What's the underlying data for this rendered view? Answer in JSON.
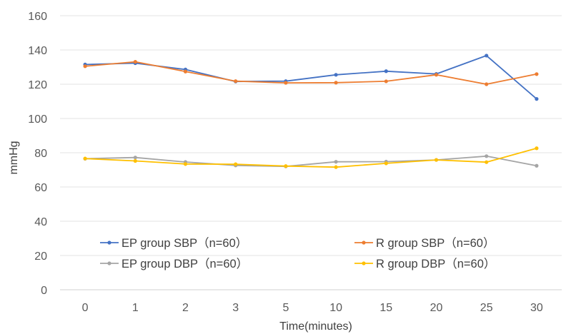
{
  "chart_data": {
    "type": "line",
    "categories": [
      "0",
      "1",
      "2",
      "3",
      "5",
      "10",
      "15",
      "20",
      "25",
      "30"
    ],
    "xlabel": "Time(minutes)",
    "ylabel": "mmHg",
    "ylim": [
      0,
      160
    ],
    "yticks": [
      0,
      20,
      40,
      60,
      80,
      100,
      120,
      140,
      160
    ],
    "grid": "horizontal",
    "legend_position": "bottom-inside",
    "series": [
      {
        "name": "EP group SBP（n=60）",
        "color": "#4472C4",
        "values": [
          131.5,
          132.3,
          128.6,
          121.6,
          121.8,
          125.5,
          127.6,
          126.0,
          136.7,
          111.4
        ]
      },
      {
        "name": "R group SBP（n=60）",
        "color": "#ED7D31",
        "values": [
          130.5,
          133.1,
          127.4,
          121.8,
          120.8,
          120.9,
          121.7,
          125.5,
          120.0,
          125.9
        ]
      },
      {
        "name": "EP group DBP（n=60）",
        "color": "#A5A5A5",
        "values": [
          76.5,
          77.2,
          74.6,
          72.6,
          72.0,
          74.7,
          74.8,
          75.8,
          78.0,
          72.4
        ]
      },
      {
        "name": "R group DBP（n=60）",
        "color": "#FFC000",
        "values": [
          76.6,
          75.2,
          73.4,
          73.3,
          72.2,
          71.6,
          73.8,
          75.8,
          74.5,
          82.6
        ]
      }
    ]
  }
}
